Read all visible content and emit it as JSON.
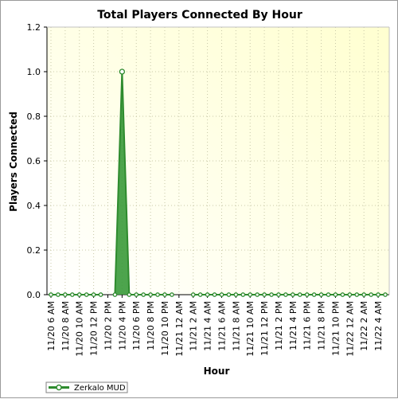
{
  "chart_data": {
    "type": "area",
    "title": "Total Players Connected By Hour",
    "xlabel": "Hour",
    "ylabel": "Players Connected",
    "ylim": [
      0,
      1.2
    ],
    "yticks": [
      "0.0",
      "0.2",
      "0.4",
      "0.6",
      "0.8",
      "1.0",
      "1.2"
    ],
    "grid": true,
    "legend_position": "bottom-left",
    "x_tick_labels": [
      "11/20 6 AM",
      "11/20 8 AM",
      "11/20 10 AM",
      "11/20 12 PM",
      "11/20 2 PM",
      "11/20 4 PM",
      "11/20 6 PM",
      "11/20 8 PM",
      "11/20 10 PM",
      "11/21 12 AM",
      "11/21 2 AM",
      "11/21 4 AM",
      "11/21 6 AM",
      "11/21 8 AM",
      "11/21 10 AM",
      "11/21 12 PM",
      "11/21 2 PM",
      "11/21 4 PM",
      "11/21 6 PM",
      "11/21 8 PM",
      "11/21 10 PM",
      "11/22 12 AM",
      "11/22 2 AM",
      "11/22 4 AM"
    ],
    "hours": [
      "11/20 6 AM",
      "11/20 7 AM",
      "11/20 8 AM",
      "11/20 9 AM",
      "11/20 10 AM",
      "11/20 11 AM",
      "11/20 12 PM",
      "11/20 1 PM",
      "11/20 2 PM",
      "11/20 3 PM",
      "11/20 4 PM",
      "11/20 5 PM",
      "11/20 6 PM",
      "11/20 7 PM",
      "11/20 8 PM",
      "11/20 9 PM",
      "11/20 10 PM",
      "11/20 11 PM",
      "11/21 12 AM",
      "11/21 1 AM",
      "11/21 2 AM",
      "11/21 3 AM",
      "11/21 4 AM",
      "11/21 5 AM",
      "11/21 6 AM",
      "11/21 7 AM",
      "11/21 8 AM",
      "11/21 9 AM",
      "11/21 10 AM",
      "11/21 11 AM",
      "11/21 12 PM",
      "11/21 1 PM",
      "11/21 2 PM",
      "11/21 3 PM",
      "11/21 4 PM",
      "11/21 5 PM",
      "11/21 6 PM",
      "11/21 7 PM",
      "11/21 8 PM",
      "11/21 9 PM",
      "11/21 10 PM",
      "11/21 11 PM",
      "11/22 12 AM",
      "11/22 1 AM",
      "11/22 2 AM",
      "11/22 3 AM",
      "11/22 4 AM",
      "11/22 5 AM"
    ],
    "series": [
      {
        "name": "Zerkalo MUD",
        "color": "#2e8b2e",
        "fill": "#3a9a3a",
        "values": [
          0,
          0,
          0,
          0,
          0,
          0,
          0,
          0,
          null,
          0,
          1,
          0,
          0,
          0,
          0,
          0,
          0,
          0,
          null,
          null,
          0,
          0,
          0,
          0,
          0,
          0,
          0,
          0,
          0,
          0,
          0,
          0,
          0,
          0,
          0,
          0,
          0,
          0,
          0,
          0,
          0,
          0,
          0,
          0,
          0,
          0,
          0,
          0
        ]
      }
    ],
    "colors": {
      "plot_bg_left": "#ffffff",
      "plot_bg_right": "#ffffd0",
      "grid": "#c8c8a8"
    }
  }
}
